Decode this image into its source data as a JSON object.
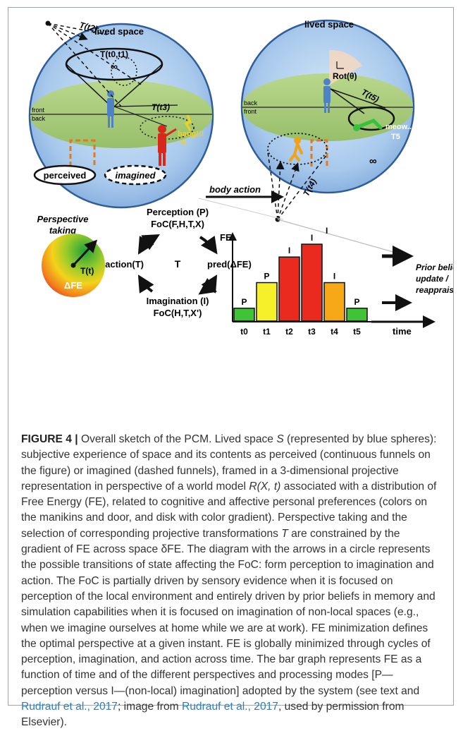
{
  "figure": {
    "sphere_left": {
      "title": "lived space",
      "t_t2": "T(t2)",
      "t_t0t1": "T(t0,t1)",
      "inf": "∞",
      "t_t3": "T(t3)",
      "front": "front",
      "back": "back",
      "bang": "bang!!!",
      "t1": "t1",
      "perceived": "perceived",
      "imagined": "imagined"
    },
    "sphere_right": {
      "title": "lived space",
      "rot": "Rot(θ)",
      "t_t5": "T(t5)",
      "back": "back",
      "front": "front",
      "meow": "meow...",
      "t5": "T5",
      "inf": "∞",
      "t_t4": "T(t4)"
    },
    "body_action": "body action",
    "disk": {
      "line1": "Perspective",
      "line2": "taking",
      "tt": "T(t)",
      "dfe": "ΔFE"
    },
    "cycle": {
      "perception_title": "Perception (P)",
      "perception_foc": "FoC(F,H,T,X)",
      "action": "action(T)",
      "center": "T",
      "pred": "pred(ΔFE)",
      "imagination_title": "Imagination (I)",
      "imagination_foc": "FoC(H,T,X')"
    },
    "bar_note_l1": "Prior belief",
    "bar_note_l2": "update /",
    "bar_note_l3": "reappraisal",
    "i_label": "I"
  },
  "chart_data": {
    "type": "bar",
    "categories": [
      "t0",
      "t1",
      "t2",
      "t3",
      "t4",
      "t5"
    ],
    "values": [
      1,
      3,
      5,
      6,
      3,
      1
    ],
    "bar_labels": [
      "P",
      "P",
      "I",
      "I",
      "I",
      "P"
    ],
    "colors": [
      "#3fc437",
      "#f6f02a",
      "#ea2a1f",
      "#ea2a1f",
      "#f7a816",
      "#3fc437"
    ],
    "ylabel": "FE",
    "xlabel": "time",
    "ylim": [
      0,
      6.5
    ]
  },
  "caption": {
    "lead": "FIGURE 4 |",
    "body1": " Overall sketch of the PCM. Lived space ",
    "s_var": "S",
    "body2": " (represented by blue spheres): subjective experience of space and its contents as perceived (continuous funnels on the figure) or imagined (dashed funnels), framed in a 3-dimensional projective representation in perspective of a world model ",
    "r_var": "R(X, t)",
    "body3": " associated with a distribution of Free Energy (FE), related to cognitive and affective personal preferences (colors on the manikins and door, and disk with color gradient). Perspective taking and the selection of corresponding projective transformations ",
    "t_var": "T",
    "body4": " are constrained by the gradient of FE across space δFE. The diagram with the arrows in a circle represents the possible transitions of state affecting the FoC: form perception to imagination and action. The FoC is partially driven by sensory evidence when it is focused on perception of the local environment and entirely driven by prior beliefs in memory and simulation capabilities when it is focused on imagination of non-local spaces (e.g., when we imagine ourselves at home while we are at work). FE minimization defines the optimal perspective at a given instant. FE is globally minimized through cycles of perception, imagination, and action across time. The bar graph represents FE as a function of time and of the different perspectives and processing modes [P—perception versus I—(non-local) imagination] adopted by the system (see text and ",
    "ref1": "Rudrauf et al., 2017",
    "body5": "; image from ",
    "ref2": "Rudrauf et al., 2017",
    "body6": ", used by permission from Elsevier)."
  }
}
